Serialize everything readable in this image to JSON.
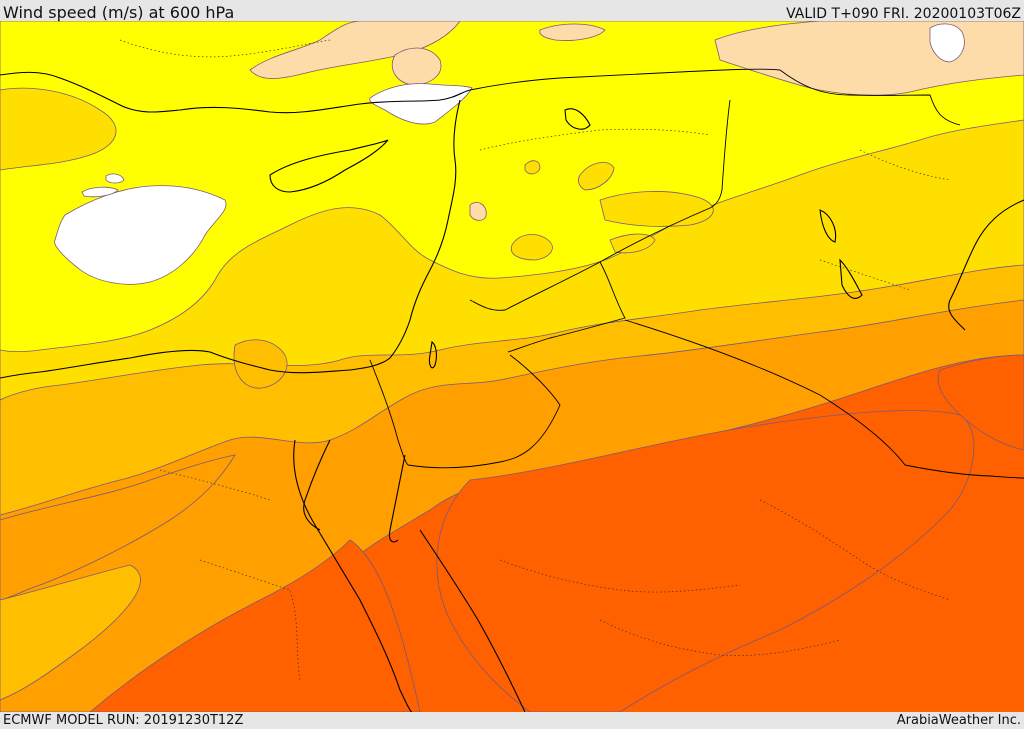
{
  "header": {
    "title": "Wind speed (m/s) at 600 hPa",
    "valid_time": "VALID T+090 FRI. 20200103T06Z"
  },
  "footer": {
    "model_run": "ECMWF MODEL RUN: 20191230T12Z",
    "provider": "ArabiaWeather Inc."
  },
  "colors": {
    "calm": "#ffffff",
    "light": "#ffff00",
    "gentle": "#ffdf00",
    "moderate": "#ffbf00",
    "fresh": "#ff9f00",
    "strong": "#ff6000",
    "peak_land": "#fddcaa",
    "borders": "#000000",
    "contours": "#7a5a7a"
  }
}
